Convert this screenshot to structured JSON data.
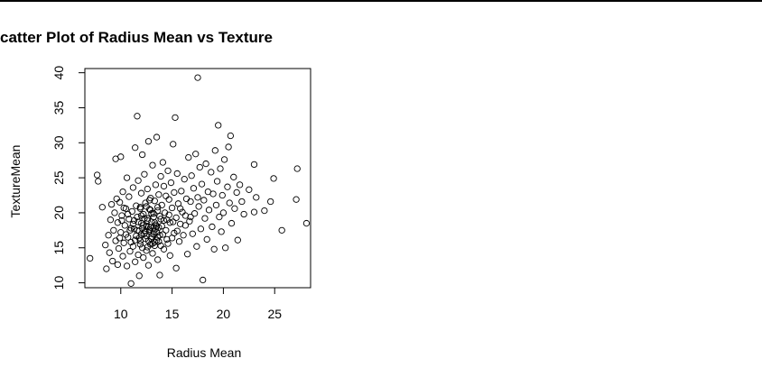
{
  "chart_data": {
    "type": "scatter",
    "title": "catter Plot of Radius Mean vs Texture",
    "xlabel": "Radius Mean",
    "ylabel": "TextureMean",
    "xlim": [
      6.5,
      28.5
    ],
    "ylim": [
      9.3,
      40.6
    ],
    "xticks": [
      10,
      15,
      20,
      25
    ],
    "yticks": [
      10,
      15,
      20,
      25,
      30,
      35,
      40
    ],
    "grid": false,
    "marker": "open-circle",
    "color": "#000000",
    "points": [
      [
        7.0,
        13.5
      ],
      [
        7.7,
        25.4
      ],
      [
        7.8,
        24.5
      ],
      [
        8.2,
        20.8
      ],
      [
        8.5,
        15.4
      ],
      [
        8.6,
        12.0
      ],
      [
        8.8,
        16.8
      ],
      [
        8.9,
        14.3
      ],
      [
        9.0,
        19.0
      ],
      [
        9.1,
        21.2
      ],
      [
        9.2,
        13.1
      ],
      [
        9.3,
        17.5
      ],
      [
        9.4,
        20.0
      ],
      [
        9.5,
        27.7
      ],
      [
        9.5,
        16.0
      ],
      [
        9.6,
        22.0
      ],
      [
        9.7,
        12.6
      ],
      [
        9.7,
        18.6
      ],
      [
        9.8,
        14.9
      ],
      [
        9.9,
        21.5
      ],
      [
        10.0,
        28.0
      ],
      [
        10.0,
        17.2
      ],
      [
        10.1,
        19.6
      ],
      [
        10.2,
        13.8
      ],
      [
        10.2,
        23.0
      ],
      [
        10.3,
        15.7
      ],
      [
        10.4,
        18.2
      ],
      [
        10.5,
        20.6
      ],
      [
        10.6,
        12.4
      ],
      [
        10.6,
        25.0
      ],
      [
        10.7,
        16.5
      ],
      [
        10.8,
        19.1
      ],
      [
        10.8,
        22.3
      ],
      [
        10.9,
        14.5
      ],
      [
        11.0,
        17.8
      ],
      [
        11.0,
        9.9
      ],
      [
        11.1,
        20.2
      ],
      [
        11.2,
        15.2
      ],
      [
        11.2,
        23.6
      ],
      [
        11.3,
        18.9
      ],
      [
        11.4,
        13.0
      ],
      [
        11.4,
        29.3
      ],
      [
        11.5,
        16.7
      ],
      [
        11.5,
        21.0
      ],
      [
        11.6,
        33.8
      ],
      [
        11.6,
        19.4
      ],
      [
        11.7,
        14.0
      ],
      [
        11.7,
        24.6
      ],
      [
        11.8,
        17.4
      ],
      [
        11.8,
        11.0
      ],
      [
        11.9,
        20.8
      ],
      [
        11.9,
        16.0
      ],
      [
        12.0,
        18.5
      ],
      [
        12.0,
        22.8
      ],
      [
        12.1,
        15.0
      ],
      [
        12.1,
        28.3
      ],
      [
        12.2,
        19.8
      ],
      [
        12.2,
        13.6
      ],
      [
        12.3,
        17.0
      ],
      [
        12.3,
        25.5
      ],
      [
        12.4,
        21.4
      ],
      [
        12.4,
        16.3
      ],
      [
        12.5,
        18.0
      ],
      [
        12.5,
        14.6
      ],
      [
        12.6,
        23.4
      ],
      [
        12.6,
        19.2
      ],
      [
        12.7,
        12.5
      ],
      [
        12.7,
        30.2
      ],
      [
        12.8,
        17.6
      ],
      [
        12.8,
        20.5
      ],
      [
        12.9,
        15.5
      ],
      [
        12.9,
        22.1
      ],
      [
        13.0,
        18.7
      ],
      [
        13.0,
        16.6
      ],
      [
        13.1,
        26.8
      ],
      [
        13.1,
        14.2
      ],
      [
        13.2,
        19.9
      ],
      [
        13.2,
        17.3
      ],
      [
        13.3,
        21.7
      ],
      [
        13.3,
        15.8
      ],
      [
        13.4,
        24.0
      ],
      [
        13.4,
        18.3
      ],
      [
        13.5,
        30.8
      ],
      [
        13.5,
        16.1
      ],
      [
        13.6,
        20.3
      ],
      [
        13.6,
        13.3
      ],
      [
        13.7,
        22.6
      ],
      [
        13.7,
        17.9
      ],
      [
        13.8,
        19.5
      ],
      [
        13.8,
        11.1
      ],
      [
        13.9,
        25.2
      ],
      [
        13.9,
        15.3
      ],
      [
        14.0,
        21.1
      ],
      [
        14.0,
        18.1
      ],
      [
        14.1,
        27.2
      ],
      [
        14.1,
        16.9
      ],
      [
        14.2,
        23.8
      ],
      [
        14.2,
        14.8
      ],
      [
        14.3,
        20.0
      ],
      [
        14.4,
        17.5
      ],
      [
        14.4,
        22.4
      ],
      [
        14.5,
        19.0
      ],
      [
        14.6,
        15.6
      ],
      [
        14.6,
        26.0
      ],
      [
        14.7,
        21.9
      ],
      [
        14.8,
        13.9
      ],
      [
        14.8,
        18.6
      ],
      [
        14.9,
        24.3
      ],
      [
        15.0,
        16.4
      ],
      [
        15.0,
        20.7
      ],
      [
        15.1,
        29.8
      ],
      [
        15.2,
        17.1
      ],
      [
        15.2,
        22.9
      ],
      [
        15.3,
        33.6
      ],
      [
        15.4,
        19.3
      ],
      [
        15.4,
        12.1
      ],
      [
        15.5,
        25.6
      ],
      [
        15.6,
        21.3
      ],
      [
        15.7,
        15.9
      ],
      [
        15.8,
        18.4
      ],
      [
        15.9,
        23.1
      ],
      [
        16.0,
        20.1
      ],
      [
        16.1,
        16.8
      ],
      [
        16.2,
        24.8
      ],
      [
        16.3,
        19.6
      ],
      [
        16.4,
        22.0
      ],
      [
        16.5,
        14.1
      ],
      [
        16.6,
        27.9
      ],
      [
        16.7,
        18.8
      ],
      [
        16.8,
        21.6
      ],
      [
        16.9,
        25.3
      ],
      [
        17.0,
        17.0
      ],
      [
        17.1,
        23.5
      ],
      [
        17.2,
        19.9
      ],
      [
        17.3,
        28.4
      ],
      [
        17.4,
        15.2
      ],
      [
        17.5,
        22.2
      ],
      [
        17.5,
        39.3
      ],
      [
        17.6,
        20.9
      ],
      [
        17.7,
        26.5
      ],
      [
        17.8,
        17.7
      ],
      [
        17.9,
        24.1
      ],
      [
        18.0,
        10.4
      ],
      [
        18.1,
        21.8
      ],
      [
        18.2,
        19.2
      ],
      [
        18.3,
        27.0
      ],
      [
        18.4,
        16.2
      ],
      [
        18.5,
        23.0
      ],
      [
        18.6,
        20.4
      ],
      [
        18.8,
        25.8
      ],
      [
        18.9,
        18.0
      ],
      [
        19.0,
        22.7
      ],
      [
        19.1,
        14.8
      ],
      [
        19.2,
        28.9
      ],
      [
        19.3,
        21.1
      ],
      [
        19.4,
        24.5
      ],
      [
        19.5,
        32.5
      ],
      [
        19.6,
        19.4
      ],
      [
        19.7,
        26.3
      ],
      [
        19.8,
        17.3
      ],
      [
        19.9,
        22.5
      ],
      [
        20.0,
        20.0
      ],
      [
        20.1,
        27.6
      ],
      [
        20.2,
        15.0
      ],
      [
        20.4,
        23.7
      ],
      [
        20.5,
        29.4
      ],
      [
        20.6,
        21.4
      ],
      [
        20.7,
        31.0
      ],
      [
        20.8,
        18.5
      ],
      [
        21.0,
        25.1
      ],
      [
        21.1,
        20.6
      ],
      [
        21.3,
        22.9
      ],
      [
        21.4,
        16.1
      ],
      [
        21.6,
        24.0
      ],
      [
        21.8,
        21.6
      ],
      [
        22.0,
        19.8
      ],
      [
        22.5,
        23.3
      ],
      [
        23.0,
        26.9
      ],
      [
        23.0,
        20.1
      ],
      [
        23.2,
        22.2
      ],
      [
        24.0,
        20.3
      ],
      [
        24.6,
        21.6
      ],
      [
        24.9,
        24.9
      ],
      [
        25.7,
        17.5
      ],
      [
        27.1,
        21.9
      ],
      [
        27.2,
        26.3
      ],
      [
        28.1,
        18.5
      ],
      [
        11.3,
        17.7
      ],
      [
        11.6,
        17.5
      ],
      [
        11.8,
        16.4
      ],
      [
        12.0,
        16.9
      ],
      [
        12.1,
        17.8
      ],
      [
        12.2,
        18.2
      ],
      [
        12.4,
        17.3
      ],
      [
        12.5,
        16.7
      ],
      [
        12.6,
        18.9
      ],
      [
        12.7,
        16.0
      ],
      [
        12.8,
        17.4
      ],
      [
        12.9,
        17.9
      ],
      [
        13.0,
        16.3
      ],
      [
        13.1,
        15.6
      ],
      [
        13.2,
        16.9
      ],
      [
        13.3,
        15.3
      ],
      [
        13.4,
        17.7
      ],
      [
        13.5,
        18.1
      ],
      [
        13.6,
        16.5
      ],
      [
        13.7,
        15.9
      ],
      [
        13.8,
        16.8
      ],
      [
        11.9,
        15.5
      ],
      [
        12.3,
        19.2
      ],
      [
        12.6,
        15.1
      ],
      [
        12.9,
        20.4
      ],
      [
        13.2,
        19.4
      ],
      [
        13.5,
        17.2
      ],
      [
        11.7,
        18.7
      ],
      [
        12.0,
        19.6
      ],
      [
        12.7,
        18.0
      ],
      [
        13.0,
        19.9
      ],
      [
        13.3,
        18.6
      ],
      [
        11.4,
        16.1
      ],
      [
        11.9,
        20.6
      ],
      [
        12.5,
        20.9
      ],
      [
        12.8,
        21.8
      ],
      [
        13.6,
        20.8
      ],
      [
        13.9,
        19.1
      ],
      [
        14.2,
        18.9
      ],
      [
        14.5,
        16.2
      ],
      [
        14.7,
        19.7
      ],
      [
        15.1,
        18.7
      ],
      [
        15.5,
        17.4
      ],
      [
        15.8,
        20.6
      ],
      [
        16.3,
        18.2
      ],
      [
        16.8,
        19.4
      ],
      [
        10.5,
        16.9
      ],
      [
        10.9,
        17.5
      ],
      [
        11.2,
        18.4
      ],
      [
        10.7,
        19.8
      ],
      [
        11.0,
        15.8
      ],
      [
        10.3,
        20.7
      ],
      [
        10.1,
        18.9
      ],
      [
        9.9,
        16.4
      ]
    ]
  }
}
